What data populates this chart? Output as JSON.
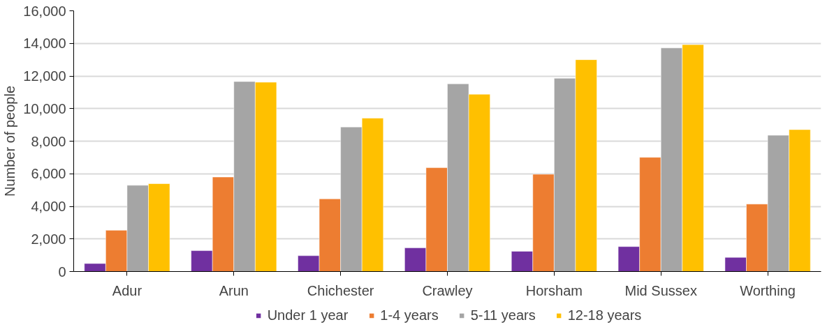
{
  "chart_data": {
    "type": "bar",
    "ylabel": "Number of people",
    "categories": [
      "Adur",
      "Arun",
      "Chichester",
      "Crawley",
      "Horsham",
      "Mid Sussex",
      "Worthing"
    ],
    "series": [
      {
        "name": "Under 1 year",
        "color": "#7030a0",
        "values": [
          490,
          1280,
          970,
          1450,
          1240,
          1530,
          870
        ]
      },
      {
        "name": "1-4 years",
        "color": "#ed7d31",
        "values": [
          2530,
          5800,
          4460,
          6370,
          5970,
          7010,
          4140
        ]
      },
      {
        "name": "5-11 years",
        "color": "#a5a5a5",
        "values": [
          5290,
          11660,
          8870,
          11520,
          11860,
          13720,
          8360
        ]
      },
      {
        "name": "12-18 years",
        "color": "#ffc000",
        "values": [
          5390,
          11620,
          9410,
          10880,
          13000,
          13920,
          8710
        ]
      }
    ],
    "ylim": [
      0,
      16000
    ],
    "yticks": [
      {
        "value": 0,
        "label": "0"
      },
      {
        "value": 2000,
        "label": "2,000"
      },
      {
        "value": 4000,
        "label": "4,000"
      },
      {
        "value": 6000,
        "label": "6,000"
      },
      {
        "value": 8000,
        "label": "8,000"
      },
      {
        "value": 10000,
        "label": "10,000"
      },
      {
        "value": 12000,
        "label": "12,000"
      },
      {
        "value": 14000,
        "label": "14,000"
      },
      {
        "value": 16000,
        "label": "16,000"
      }
    ],
    "grid": "y",
    "legend": "bottom"
  }
}
